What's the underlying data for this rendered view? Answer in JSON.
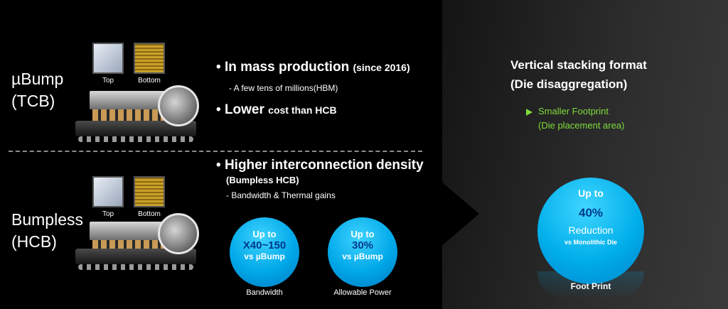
{
  "left": {
    "row1": {
      "label_line1": "µBump",
      "label_line2": "(TCB)",
      "chip_top_caption": "Top",
      "chip_bottom_caption": "Bottom",
      "bullet1_main": "In mass production",
      "bullet1_small": "(since 2016)",
      "bullet1_sub": "- A few tens of millions(HBM)",
      "bullet2_main": "Lower",
      "bullet2_small": "cost than HCB"
    },
    "row2": {
      "label_line1": "Bumpless",
      "label_line2": "(HCB)",
      "chip_top_caption": "Top",
      "chip_bottom_caption": "Bottom",
      "bullet_main": "Higher interconnection density",
      "bullet_sub_bold": "(Bumpless HCB)",
      "bullet_sub": "- Bandwidth & Thermal gains",
      "circle1": {
        "up": "Up to",
        "value": "X40~150",
        "vs": "vs µBump",
        "caption": "Bandwidth"
      },
      "circle2": {
        "up": "Up to",
        "value": "30%",
        "vs": "vs µBump",
        "caption": "Allowable Power"
      }
    }
  },
  "right": {
    "title_line1": "Vertical stacking format",
    "title_line2": "(Die disaggregation)",
    "bullet_line1": "Smaller Footprint",
    "bullet_line2": "(Die placement area)",
    "circle": {
      "up": "Up to",
      "value": "40%",
      "reduction": "Reduction",
      "vs": "vs Monolithic Die"
    },
    "caption": "Foot Print"
  },
  "colors": {
    "accent_blue": "#00a8e8",
    "accent_green": "#7fdc3c",
    "value_navy": "#003a8c"
  }
}
